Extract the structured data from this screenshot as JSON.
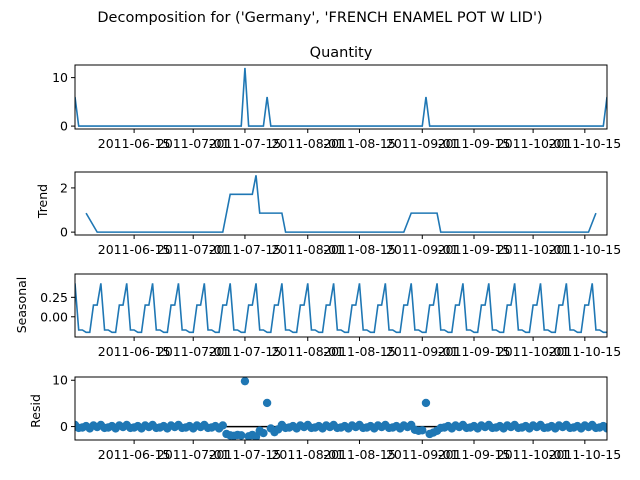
{
  "suptitle": "Decomposition for ('Germany', 'FRENCH ENAMEL POT W LID')",
  "colors": {
    "line": "#1f77b4",
    "marker": "#1f77b4",
    "axis": "#000000",
    "zero_line": "#000000"
  },
  "chart_data": [
    {
      "type": "line",
      "title": "Quantity",
      "ylabel": "",
      "x_start": "2011-05-30",
      "x_end": "2011-10-21",
      "ylim": [
        -0.6,
        12.6
      ],
      "yticks": [
        0,
        10
      ],
      "xticks": [
        "2011-06-15",
        "2011-07-01",
        "2011-07-15",
        "2011-08-01",
        "2011-08-15",
        "2011-09-01",
        "2011-09-15",
        "2011-10-01",
        "2011-10-15"
      ],
      "series": [
        {
          "points": [
            [
              "2011-05-30",
              6
            ],
            [
              "2011-05-31",
              0
            ],
            [
              "2011-07-14",
              0
            ],
            [
              "2011-07-15",
              12
            ],
            [
              "2011-07-16",
              0
            ],
            [
              "2011-07-20",
              0
            ],
            [
              "2011-07-21",
              6
            ],
            [
              "2011-07-22",
              0
            ],
            [
              "2011-09-01",
              0
            ],
            [
              "2011-09-02",
              6
            ],
            [
              "2011-09-03",
              0
            ],
            [
              "2011-10-20",
              0
            ],
            [
              "2011-10-21",
              6
            ]
          ]
        }
      ]
    },
    {
      "type": "line",
      "title": "",
      "ylabel": "Trend",
      "x_start": "2011-05-30",
      "x_end": "2011-10-21",
      "ylim": [
        -0.13,
        2.72
      ],
      "yticks": [
        0,
        2
      ],
      "xticks": [
        "2011-06-15",
        "2011-07-01",
        "2011-07-15",
        "2011-08-01",
        "2011-08-15",
        "2011-09-01",
        "2011-09-15",
        "2011-10-01",
        "2011-10-15"
      ],
      "series": [
        {
          "points": [
            [
              "2011-06-02",
              0.86
            ],
            [
              "2011-06-05",
              0
            ],
            [
              "2011-07-09",
              0
            ],
            [
              "2011-07-11",
              1.71
            ],
            [
              "2011-07-17",
              1.71
            ],
            [
              "2011-07-18",
              2.57
            ],
            [
              "2011-07-19",
              0.86
            ],
            [
              "2011-07-25",
              0.86
            ],
            [
              "2011-07-26",
              0
            ],
            [
              "2011-08-27",
              0
            ],
            [
              "2011-08-29",
              0.86
            ],
            [
              "2011-09-05",
              0.86
            ],
            [
              "2011-09-06",
              0
            ],
            [
              "2011-10-16",
              0
            ],
            [
              "2011-10-18",
              0.86
            ]
          ]
        }
      ]
    },
    {
      "type": "line",
      "title": "",
      "ylabel": "Seasonal",
      "x_start": "2011-05-30",
      "x_end": "2011-10-21",
      "ylim": [
        -0.26,
        0.55
      ],
      "yticks": [
        0.0,
        0.25
      ],
      "ytick_labels": [
        "0.00",
        "0.25"
      ],
      "period": 7,
      "pattern": [
        0.43,
        -0.17,
        -0.17,
        -0.2,
        -0.2,
        0.15,
        0.15
      ],
      "series": [
        {
          "start": "2011-05-30",
          "end": "2011-10-21"
        }
      ],
      "xticks": [
        "2011-06-15",
        "2011-07-01",
        "2011-07-15",
        "2011-08-01",
        "2011-08-15",
        "2011-09-01",
        "2011-09-15",
        "2011-10-01",
        "2011-10-15"
      ]
    },
    {
      "type": "scatter",
      "title": "",
      "ylabel": "Resid",
      "x_start": "2011-05-30",
      "x_end": "2011-10-21",
      "ylim": [
        -2.9,
        10.7
      ],
      "yticks": [
        0,
        10
      ],
      "zero_line": true,
      "outliers": [
        [
          "2011-07-15",
          9.8
        ],
        [
          "2011-07-21",
          5.1
        ],
        [
          "2011-09-02",
          5.1
        ]
      ],
      "dips": [
        [
          "2011-07-10",
          -1.6
        ],
        [
          "2011-07-11",
          -1.9
        ],
        [
          "2011-07-12",
          -2.0
        ],
        [
          "2011-07-13",
          -1.8
        ],
        [
          "2011-07-14",
          -1.9
        ],
        [
          "2011-07-16",
          -2.1
        ],
        [
          "2011-07-17",
          -1.8
        ],
        [
          "2011-07-18",
          -2.2
        ],
        [
          "2011-07-19",
          -0.9
        ],
        [
          "2011-07-20",
          -1.4
        ],
        [
          "2011-07-23",
          -1.2
        ],
        [
          "2011-07-24",
          -0.6
        ],
        [
          "2011-08-30",
          -0.7
        ],
        [
          "2011-08-31",
          -0.9
        ],
        [
          "2011-09-01",
          -0.8
        ],
        [
          "2011-09-03",
          -1.6
        ],
        [
          "2011-09-04",
          -1.3
        ],
        [
          "2011-09-05",
          -0.9
        ]
      ],
      "baseline_pattern": [
        0.35,
        -0.3,
        -0.2,
        0.1,
        -0.4,
        0.25,
        -0.1
      ],
      "xticks": [
        "2011-06-15",
        "2011-07-01",
        "2011-07-15",
        "2011-08-01",
        "2011-08-15",
        "2011-09-01",
        "2011-09-15",
        "2011-10-01",
        "2011-10-15"
      ]
    }
  ]
}
